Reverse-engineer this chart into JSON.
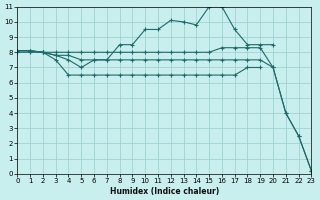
{
  "xlabel": "Humidex (Indice chaleur)",
  "xlim": [
    0,
    23
  ],
  "ylim": [
    0,
    11
  ],
  "xticks": [
    0,
    1,
    2,
    3,
    4,
    5,
    6,
    7,
    8,
    9,
    10,
    11,
    12,
    13,
    14,
    15,
    16,
    17,
    18,
    19,
    20,
    21,
    22,
    23
  ],
  "yticks": [
    0,
    1,
    2,
    3,
    4,
    5,
    6,
    7,
    8,
    9,
    10,
    11
  ],
  "bg_color": "#c8eeed",
  "grid_color": "#99cccc",
  "line_color": "#1e6b6b",
  "lines": [
    {
      "x": [
        0,
        1,
        2,
        3,
        4,
        5,
        6,
        7,
        8,
        9,
        10,
        11,
        12,
        13,
        14,
        15,
        16,
        17,
        18,
        19,
        20
      ],
      "y": [
        8.1,
        8.1,
        8.0,
        7.8,
        7.5,
        7.0,
        7.5,
        7.5,
        8.5,
        8.5,
        9.5,
        9.5,
        10.1,
        10.0,
        9.8,
        11.0,
        11.0,
        9.5,
        8.5,
        8.5,
        8.5
      ]
    },
    {
      "x": [
        0,
        1,
        2,
        3,
        4,
        5,
        6,
        7,
        8,
        9,
        10,
        11,
        12,
        13,
        14,
        15,
        16,
        17,
        18,
        19,
        20,
        21,
        22,
        23
      ],
      "y": [
        8.1,
        8.1,
        8.0,
        8.0,
        8.0,
        8.0,
        8.0,
        8.0,
        8.0,
        8.0,
        8.0,
        8.0,
        8.0,
        8.0,
        8.0,
        8.0,
        8.3,
        8.3,
        8.3,
        8.3,
        7.0,
        4.0,
        2.5,
        0.2
      ]
    },
    {
      "x": [
        0,
        1,
        2,
        3,
        4,
        5,
        6,
        7,
        8,
        9,
        10,
        11,
        12,
        13,
        14,
        15,
        16,
        17,
        18,
        19,
        20,
        21,
        22,
        23
      ],
      "y": [
        8.0,
        8.0,
        8.0,
        7.8,
        7.8,
        7.5,
        7.5,
        7.5,
        7.5,
        7.5,
        7.5,
        7.5,
        7.5,
        7.5,
        7.5,
        7.5,
        7.5,
        7.5,
        7.5,
        7.5,
        7.0,
        4.0,
        2.5,
        0.2
      ]
    },
    {
      "x": [
        0,
        1,
        2,
        3,
        4,
        5,
        6,
        7,
        8,
        9,
        10,
        11,
        12,
        13,
        14,
        15,
        16,
        17,
        18,
        19
      ],
      "y": [
        8.1,
        8.1,
        8.0,
        7.5,
        6.5,
        6.5,
        6.5,
        6.5,
        6.5,
        6.5,
        6.5,
        6.5,
        6.5,
        6.5,
        6.5,
        6.5,
        6.5,
        6.5,
        7.0,
        7.0
      ]
    }
  ]
}
